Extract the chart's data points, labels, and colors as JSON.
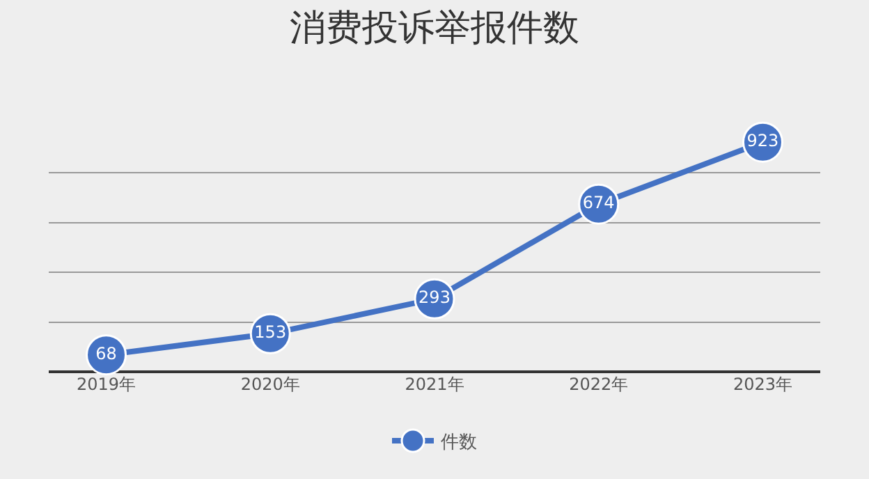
{
  "chart_data": {
    "type": "line",
    "title": "消费投诉举报件数",
    "categories": [
      "2019年",
      "2020年",
      "2021年",
      "2022年",
      "2023年"
    ],
    "series": [
      {
        "name": "件数",
        "color": "#4472c4",
        "values": [
          68,
          153,
          293,
          674,
          923
        ]
      }
    ],
    "yticks": [
      {
        "value": 0,
        "label": null
      },
      {
        "value": 200,
        "label": null
      },
      {
        "value": 400,
        "label": null
      },
      {
        "value": 600,
        "label": null
      },
      {
        "value": 800,
        "label": null
      }
    ],
    "grid": "y",
    "legend": "bottom",
    "marker": "circle",
    "line_style": "solid",
    "data_labels": true
  }
}
